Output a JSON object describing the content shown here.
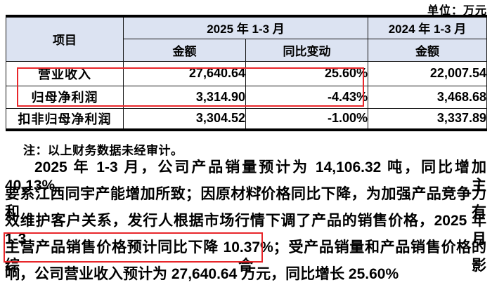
{
  "unit_label": "单位：万元",
  "table": {
    "header": {
      "item": "项目",
      "period_2025": "2025 年 1-3 月",
      "period_2024": "2024 年 1-3 月",
      "amount_2025": "金额",
      "yoy_change": "同比变动",
      "amount_2024": "金额"
    },
    "rows": [
      {
        "item": "营业收入",
        "amount_2025": "27,640.64",
        "yoy": "25.60%",
        "amount_2024": "22,007.54"
      },
      {
        "item": "归母净利润",
        "amount_2025": "3,314.90",
        "yoy": "-4.43%",
        "amount_2024": "3,468.68"
      },
      {
        "item": "扣非归母净利润",
        "amount_2025": "3,304.52",
        "yoy": "-1.00%",
        "amount_2024": "3,337.89"
      }
    ]
  },
  "note": "注：以上财务数据未经审计。",
  "paragraph": {
    "lines": [
      "2025 年 1-3 月，公司产品销量预计为 14,106.32 吨，同比增加 40.13%，主",
      "要系江西同宇产能增加所致；因原材料价格同比下降，为加强产品竞争力和有",
      "效维护客户关系，发行人根据市场行情下调了产品的销售价格，2025 年 1-3 月",
      "主营产品销售价格预计同比下降 10.37%；受产品销量和产品销售价格的综合影",
      "响，公司营业收入预计为 27,640.64 万元，同比增长 25.60%"
    ],
    "highlighted_text": "主营产品销售价格预计同比下降 10.37%；"
  },
  "colors": {
    "header_bg": "#dce3f2",
    "highlight_red": "#e8262a",
    "border": "#141414"
  }
}
